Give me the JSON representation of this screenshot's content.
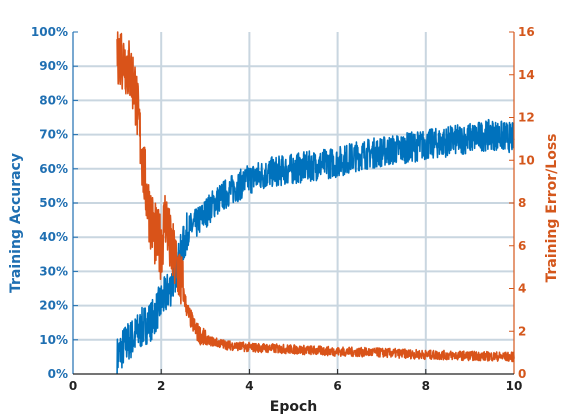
{
  "chart_data": {
    "type": "line",
    "xlabel": "Epoch",
    "ylabel_left": "Training Accuracy",
    "ylabel_right": "Training Error/Loss",
    "xlim": [
      0,
      10
    ],
    "ylim_left": [
      0,
      100
    ],
    "ylim_right": [
      0,
      16
    ],
    "x_ticks": [
      "0",
      "2",
      "4",
      "6",
      "8",
      "10"
    ],
    "y_left_ticks": [
      "0%",
      "10%",
      "20%",
      "30%",
      "40%",
      "50%",
      "60%",
      "70%",
      "80%",
      "90%",
      "100%"
    ],
    "y_right_ticks": [
      "0",
      "2",
      "4",
      "6",
      "8",
      "10",
      "12",
      "14",
      "16"
    ],
    "grid": true,
    "colors": {
      "accuracy": "#0072bd",
      "loss": "#d95319",
      "grid": "#c9d6e0"
    },
    "series": [
      {
        "axis": "left",
        "unit": "%",
        "x": [
          1.0,
          1.2,
          1.4,
          1.6,
          1.8,
          2.0,
          2.2,
          2.4,
          2.6,
          2.8,
          3.0,
          3.2,
          3.5,
          4.0,
          4.5,
          5.0,
          5.5,
          6.0,
          6.5,
          7.0,
          7.5,
          8.0,
          8.5,
          9.0,
          9.5,
          10.0
        ],
        "y": [
          5,
          9,
          11,
          14,
          16,
          21,
          25,
          33,
          42,
          44,
          47,
          50,
          53,
          57,
          59,
          60,
          61,
          62,
          64,
          65,
          66,
          67,
          68,
          69,
          70,
          69
        ]
      },
      {
        "axis": "right",
        "x": [
          1.0,
          1.2,
          1.4,
          1.5,
          1.6,
          1.7,
          1.8,
          1.9,
          2.0,
          2.1,
          2.2,
          2.3,
          2.4,
          2.5,
          2.6,
          2.8,
          3.0,
          3.5,
          4.0,
          5.0,
          6.0,
          7.0,
          8.0,
          9.0,
          10.0
        ],
        "y": [
          15.2,
          14.6,
          13.5,
          11.5,
          9.5,
          8.0,
          7.0,
          6.2,
          6.0,
          7.5,
          6.0,
          5.3,
          4.8,
          3.8,
          2.9,
          2.0,
          1.6,
          1.35,
          1.25,
          1.15,
          1.05,
          1.0,
          0.9,
          0.85,
          0.8
        ]
      }
    ]
  }
}
